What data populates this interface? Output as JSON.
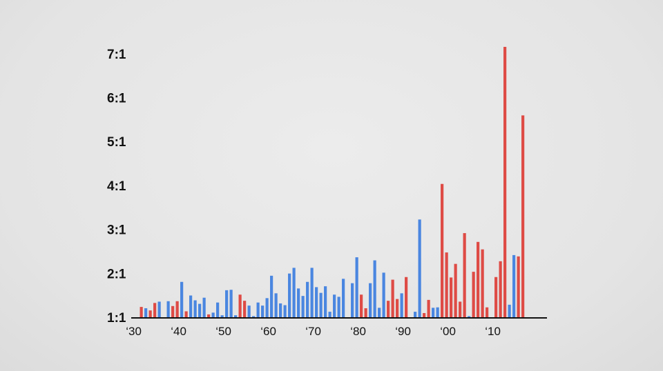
{
  "chart_data": {
    "type": "bar",
    "title": "",
    "xlabel": "",
    "ylabel": "",
    "ylim": [
      1,
      7.2
    ],
    "grid": false,
    "legend": "none",
    "colors": {
      "blue": "#4a86e0",
      "red": "#de4b45",
      "axis": "#111111",
      "text": "#111111"
    },
    "y_ticks": [
      {
        "value": 1,
        "label": "1:1"
      },
      {
        "value": 2,
        "label": "2:1"
      },
      {
        "value": 3,
        "label": "3:1"
      },
      {
        "value": 4,
        "label": "4:1"
      },
      {
        "value": 5,
        "label": "5:1"
      },
      {
        "value": 6,
        "label": "6:1"
      },
      {
        "value": 7,
        "label": "7:1"
      }
    ],
    "x_ticks": [
      {
        "year": 1930,
        "label": "‘30"
      },
      {
        "year": 1940,
        "label": "‘40"
      },
      {
        "year": 1950,
        "label": "‘50"
      },
      {
        "year": 1960,
        "label": "‘60"
      },
      {
        "year": 1970,
        "label": "‘70"
      },
      {
        "year": 1980,
        "label": "‘80"
      },
      {
        "year": 1990,
        "label": "‘90"
      },
      {
        "year": 2000,
        "label": "‘00"
      },
      {
        "year": 2010,
        "label": "‘10"
      }
    ],
    "bars": [
      {
        "year": 1932,
        "value": 1.25,
        "party": "red"
      },
      {
        "year": 1933,
        "value": 1.22,
        "party": "blue"
      },
      {
        "year": 1934,
        "value": 1.17,
        "party": "red"
      },
      {
        "year": 1935,
        "value": 1.34,
        "party": "red"
      },
      {
        "year": 1936,
        "value": 1.37,
        "party": "blue"
      },
      {
        "year": 1938,
        "value": 1.38,
        "party": "blue"
      },
      {
        "year": 1939,
        "value": 1.27,
        "party": "red"
      },
      {
        "year": 1940,
        "value": 1.38,
        "party": "red"
      },
      {
        "year": 1941,
        "value": 1.82,
        "party": "blue"
      },
      {
        "year": 1942,
        "value": 1.15,
        "party": "red"
      },
      {
        "year": 1943,
        "value": 1.51,
        "party": "blue"
      },
      {
        "year": 1944,
        "value": 1.4,
        "party": "blue"
      },
      {
        "year": 1945,
        "value": 1.32,
        "party": "blue"
      },
      {
        "year": 1946,
        "value": 1.46,
        "party": "blue"
      },
      {
        "year": 1947,
        "value": 1.08,
        "party": "red"
      },
      {
        "year": 1948,
        "value": 1.12,
        "party": "blue"
      },
      {
        "year": 1949,
        "value": 1.35,
        "party": "blue"
      },
      {
        "year": 1950,
        "value": 1.06,
        "party": "blue"
      },
      {
        "year": 1951,
        "value": 1.63,
        "party": "blue"
      },
      {
        "year": 1952,
        "value": 1.64,
        "party": "blue"
      },
      {
        "year": 1953,
        "value": 1.06,
        "party": "blue"
      },
      {
        "year": 1954,
        "value": 1.53,
        "party": "red"
      },
      {
        "year": 1955,
        "value": 1.39,
        "party": "red"
      },
      {
        "year": 1956,
        "value": 1.28,
        "party": "blue"
      },
      {
        "year": 1957,
        "value": 1.04,
        "party": "blue"
      },
      {
        "year": 1958,
        "value": 1.35,
        "party": "blue"
      },
      {
        "year": 1959,
        "value": 1.28,
        "party": "blue"
      },
      {
        "year": 1960,
        "value": 1.45,
        "party": "blue"
      },
      {
        "year": 1961,
        "value": 1.96,
        "party": "blue"
      },
      {
        "year": 1962,
        "value": 1.56,
        "party": "blue"
      },
      {
        "year": 1963,
        "value": 1.33,
        "party": "blue"
      },
      {
        "year": 1964,
        "value": 1.29,
        "party": "blue"
      },
      {
        "year": 1965,
        "value": 2.01,
        "party": "blue"
      },
      {
        "year": 1966,
        "value": 2.14,
        "party": "blue"
      },
      {
        "year": 1967,
        "value": 1.67,
        "party": "blue"
      },
      {
        "year": 1968,
        "value": 1.5,
        "party": "blue"
      },
      {
        "year": 1969,
        "value": 1.82,
        "party": "blue"
      },
      {
        "year": 1970,
        "value": 2.14,
        "party": "blue"
      },
      {
        "year": 1971,
        "value": 1.7,
        "party": "blue"
      },
      {
        "year": 1972,
        "value": 1.57,
        "party": "blue"
      },
      {
        "year": 1973,
        "value": 1.72,
        "party": "blue"
      },
      {
        "year": 1974,
        "value": 1.14,
        "party": "blue"
      },
      {
        "year": 1975,
        "value": 1.53,
        "party": "blue"
      },
      {
        "year": 1976,
        "value": 1.48,
        "party": "blue"
      },
      {
        "year": 1977,
        "value": 1.89,
        "party": "blue"
      },
      {
        "year": 1979,
        "value": 1.79,
        "party": "blue"
      },
      {
        "year": 1980,
        "value": 2.38,
        "party": "blue"
      },
      {
        "year": 1981,
        "value": 1.53,
        "party": "red"
      },
      {
        "year": 1982,
        "value": 1.22,
        "party": "red"
      },
      {
        "year": 1983,
        "value": 1.79,
        "party": "blue"
      },
      {
        "year": 1984,
        "value": 2.31,
        "party": "blue"
      },
      {
        "year": 1985,
        "value": 1.23,
        "party": "blue"
      },
      {
        "year": 1986,
        "value": 2.03,
        "party": "blue"
      },
      {
        "year": 1987,
        "value": 1.39,
        "party": "red"
      },
      {
        "year": 1988,
        "value": 1.87,
        "party": "red"
      },
      {
        "year": 1989,
        "value": 1.43,
        "party": "red"
      },
      {
        "year": 1990,
        "value": 1.56,
        "party": "blue"
      },
      {
        "year": 1991,
        "value": 1.93,
        "party": "red"
      },
      {
        "year": 1993,
        "value": 1.14,
        "party": "blue"
      },
      {
        "year": 1994,
        "value": 3.24,
        "party": "blue"
      },
      {
        "year": 1995,
        "value": 1.11,
        "party": "red"
      },
      {
        "year": 1996,
        "value": 1.41,
        "party": "red"
      },
      {
        "year": 1997,
        "value": 1.23,
        "party": "blue"
      },
      {
        "year": 1998,
        "value": 1.24,
        "party": "blue"
      },
      {
        "year": 1999,
        "value": 4.05,
        "party": "red"
      },
      {
        "year": 2000,
        "value": 2.49,
        "party": "red"
      },
      {
        "year": 2001,
        "value": 1.92,
        "party": "red"
      },
      {
        "year": 2002,
        "value": 2.23,
        "party": "red"
      },
      {
        "year": 2003,
        "value": 1.37,
        "party": "red"
      },
      {
        "year": 2004,
        "value": 2.93,
        "party": "red"
      },
      {
        "year": 2005,
        "value": 1.04,
        "party": "blue"
      },
      {
        "year": 2006,
        "value": 2.05,
        "party": "red"
      },
      {
        "year": 2007,
        "value": 2.73,
        "party": "red"
      },
      {
        "year": 2008,
        "value": 2.56,
        "party": "red"
      },
      {
        "year": 2009,
        "value": 1.24,
        "party": "red"
      },
      {
        "year": 2011,
        "value": 1.93,
        "party": "red"
      },
      {
        "year": 2012,
        "value": 2.29,
        "party": "red"
      },
      {
        "year": 2013,
        "value": 7.17,
        "party": "red"
      },
      {
        "year": 2014,
        "value": 1.3,
        "party": "blue"
      },
      {
        "year": 2015,
        "value": 2.43,
        "party": "blue"
      },
      {
        "year": 2016,
        "value": 2.4,
        "party": "red"
      },
      {
        "year": 2017,
        "value": 5.61,
        "party": "red"
      }
    ]
  }
}
